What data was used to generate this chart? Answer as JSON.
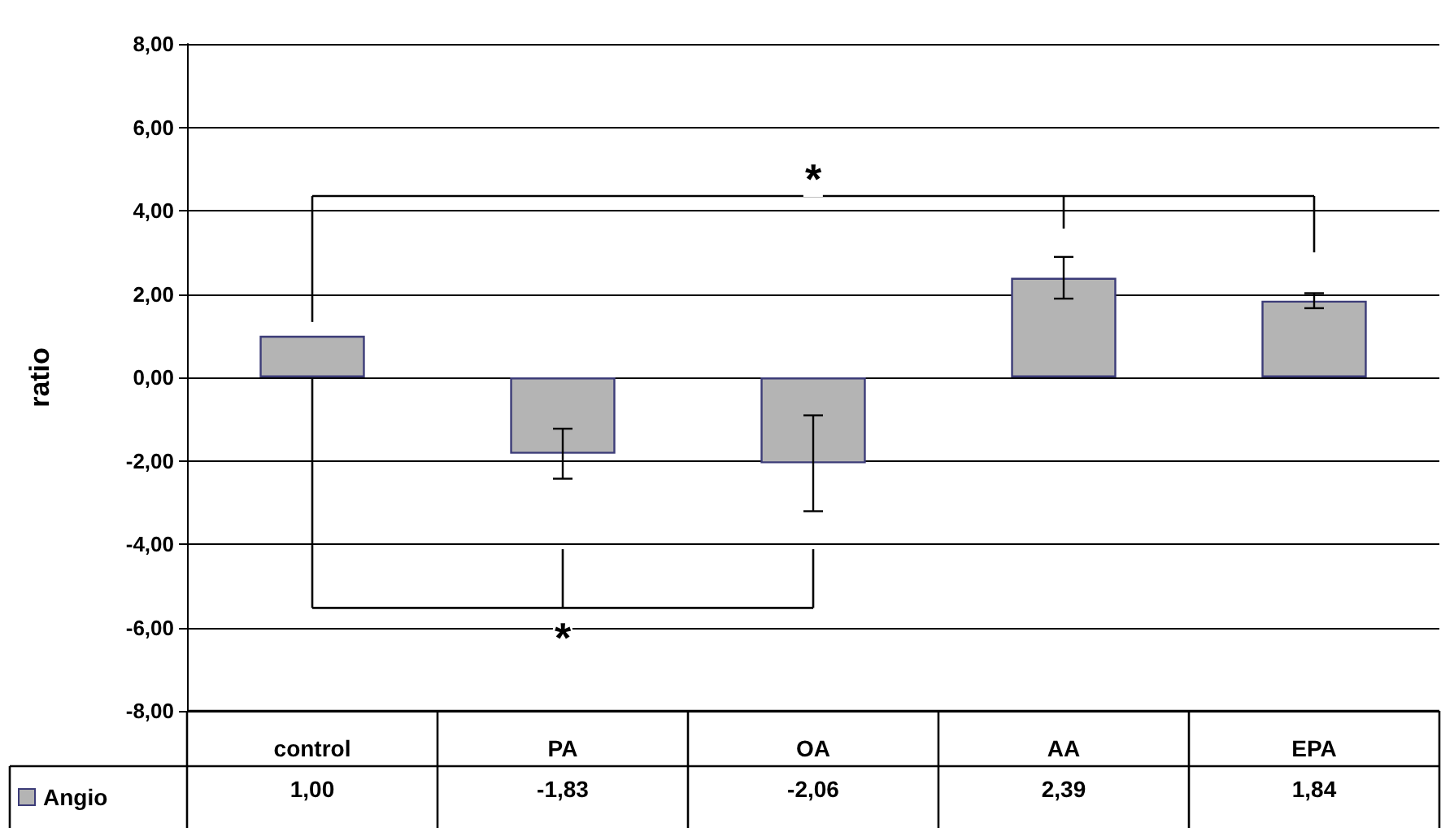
{
  "chart_data": {
    "type": "bar",
    "ylabel": "ratio",
    "categories": [
      "control",
      "PA",
      "OA",
      "AA",
      "EPA"
    ],
    "series": [
      {
        "name": "Angio",
        "color": "#b4b4b4",
        "values": [
          1.0,
          -1.83,
          -2.06,
          2.39,
          1.84
        ],
        "errors": [
          null,
          0.6,
          1.15,
          0.5,
          0.18
        ],
        "value_labels": [
          "1,00",
          "-1,83",
          "-2,06",
          "2,39",
          "1,84"
        ]
      }
    ],
    "ylim": [
      -8,
      8
    ],
    "yticks": [
      {
        "value": -8,
        "label": "-8,00"
      },
      {
        "value": -6,
        "label": "-6,00"
      },
      {
        "value": -4,
        "label": "-4,00"
      },
      {
        "value": -2,
        "label": "-2,00"
      },
      {
        "value": 0,
        "label": "0,00"
      },
      {
        "value": 2,
        "label": "2,00"
      },
      {
        "value": 4,
        "label": "4,00"
      },
      {
        "value": 6,
        "label": "6,00"
      },
      {
        "value": 8,
        "label": "8,00"
      }
    ],
    "grid": "y",
    "legend": "bottom left",
    "annotations": [
      "*",
      "*"
    ]
  }
}
